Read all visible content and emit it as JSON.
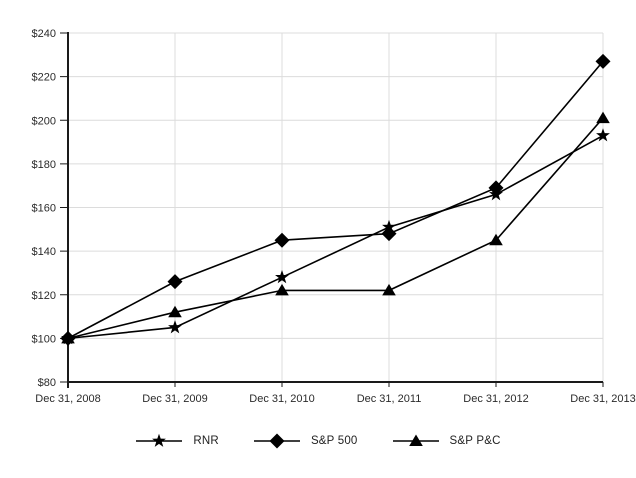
{
  "chart_data": {
    "type": "line",
    "title": "",
    "categories": [
      "Dec 31, 2008",
      "Dec 31, 2009",
      "Dec 31, 2010",
      "Dec 31, 2011",
      "Dec 31, 2012",
      "Dec 31, 2013"
    ],
    "series": [
      {
        "name": "RNR",
        "marker": "star",
        "values": [
          100,
          105,
          128,
          151,
          166,
          193
        ]
      },
      {
        "name": "S&P 500",
        "marker": "diamond",
        "values": [
          100,
          126,
          145,
          148,
          169,
          227
        ]
      },
      {
        "name": "S&P P&C",
        "marker": "triangle",
        "values": [
          100,
          112,
          122,
          122,
          145,
          201
        ]
      }
    ],
    "ylim": [
      80,
      240
    ],
    "yticks": [
      80,
      100,
      120,
      140,
      160,
      180,
      200,
      220,
      240
    ],
    "ytick_labels": [
      "$80",
      "$100",
      "$120",
      "$140",
      "$160",
      "$180",
      "$200",
      "$220",
      "$240"
    ],
    "xlabel": "",
    "ylabel": "",
    "grid": true,
    "legend_position": "bottom",
    "colors": {
      "line": "#000000",
      "marker": "#000000",
      "grid": "#dcdcdc",
      "axis": "#1a1a1a",
      "text": "#2b2b2b",
      "background": "#ffffff"
    }
  }
}
